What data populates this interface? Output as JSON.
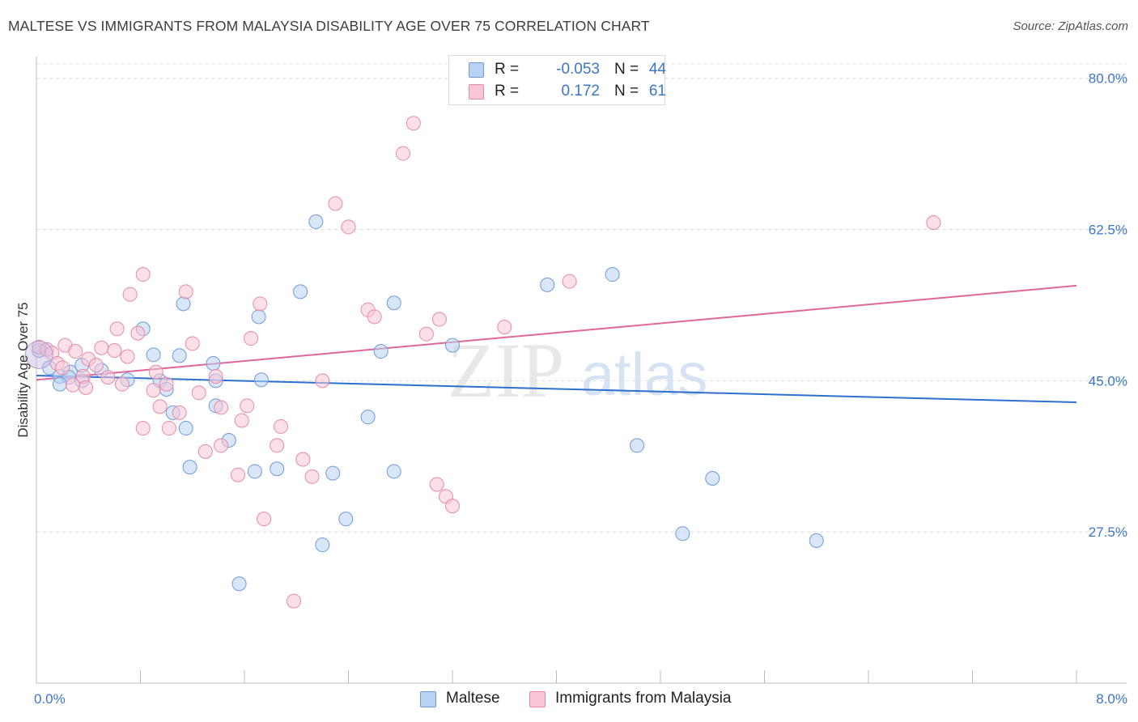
{
  "title": "MALTESE VS IMMIGRANTS FROM MALAYSIA DISABILITY AGE OVER 75 CORRELATION CHART",
  "source": "Source: ZipAtlas.com",
  "watermark": {
    "zip": "ZIP",
    "atlas": "atlas"
  },
  "legend": {
    "rows": [
      {
        "r_label": "R =",
        "r_value": "-0.053",
        "n_label": "N =",
        "n_value": "44",
        "fill": "#b9d1f2",
        "stroke": "#6f9ad8"
      },
      {
        "r_label": "R =",
        "r_value": "0.172",
        "n_label": "N =",
        "n_value": "61",
        "fill": "#f9c6d6",
        "stroke": "#e68aa8"
      }
    ],
    "bottom": [
      {
        "label": "Maltese",
        "fill": "#b9d1f2",
        "stroke": "#6f9ad8"
      },
      {
        "label": "Immigrants from Malaysia",
        "fill": "#f9c6d6",
        "stroke": "#e68aa8"
      }
    ]
  },
  "chart_data": {
    "type": "scatter",
    "title": "MALTESE VS IMMIGRANTS FROM MALAYSIA DISABILITY AGE OVER 75 CORRELATION CHART",
    "xlabel": "",
    "ylabel": "Disability Age Over 75",
    "xlim": [
      0,
      8
    ],
    "ylim": [
      10,
      82.5
    ],
    "x_tick_labels": [
      "0.0%",
      "8.0%"
    ],
    "y_ticks": [
      27.5,
      45.0,
      62.5,
      80.0
    ],
    "y_tick_labels": [
      "27.5%",
      "45.0%",
      "62.5%",
      "80.0%"
    ],
    "grid": "horizontal dashed",
    "legend_position": "top-center",
    "colors": {
      "maltese": "#6f9ad8",
      "maltese_line": "#2f6fd0",
      "malaysia": "#e68aa8",
      "malaysia_line": "#e0679a",
      "axis_text": "#3c76c9"
    },
    "series": [
      {
        "name": "Maltese",
        "color": "#6f9ad8",
        "trend": {
          "x": [
            0,
            8
          ],
          "y": [
            45.6,
            42.5
          ]
        },
        "points": [
          [
            0.02,
            48.5
          ],
          [
            0.1,
            46.5
          ],
          [
            0.18,
            45.5
          ],
          [
            0.26,
            46.0
          ],
          [
            0.35,
            46.8
          ],
          [
            0.5,
            46.2
          ],
          [
            0.25,
            45.4
          ],
          [
            0.35,
            45.0
          ],
          [
            0.18,
            44.6
          ],
          [
            0.7,
            45.1
          ],
          [
            0.82,
            51.0
          ],
          [
            0.9,
            48.0
          ],
          [
            0.95,
            45.0
          ],
          [
            1.0,
            44.0
          ],
          [
            1.05,
            41.3
          ],
          [
            1.1,
            47.9
          ],
          [
            1.13,
            53.9
          ],
          [
            1.15,
            39.5
          ],
          [
            1.18,
            35.0
          ],
          [
            1.38,
            42.1
          ],
          [
            1.38,
            45.0
          ],
          [
            1.36,
            47.0
          ],
          [
            1.48,
            38.1
          ],
          [
            1.56,
            21.5
          ],
          [
            1.68,
            34.5
          ],
          [
            1.71,
            52.4
          ],
          [
            1.73,
            45.1
          ],
          [
            1.85,
            34.8
          ],
          [
            2.03,
            55.3
          ],
          [
            2.15,
            63.4
          ],
          [
            2.2,
            26.0
          ],
          [
            2.28,
            34.3
          ],
          [
            2.38,
            29.0
          ],
          [
            2.55,
            40.8
          ],
          [
            2.65,
            48.4
          ],
          [
            2.75,
            54.0
          ],
          [
            2.75,
            34.5
          ],
          [
            3.2,
            49.1
          ],
          [
            3.93,
            56.1
          ],
          [
            4.43,
            57.3
          ],
          [
            4.62,
            37.5
          ],
          [
            4.97,
            27.3
          ],
          [
            5.2,
            33.7
          ],
          [
            6.0,
            26.5
          ]
        ]
      },
      {
        "name": "Immigrants from Malaysia",
        "color": "#e68aa8",
        "trend": {
          "x": [
            0,
            8
          ],
          "y": [
            45.1,
            56.0
          ]
        },
        "points": [
          [
            0.02,
            48.9
          ],
          [
            0.08,
            48.6
          ],
          [
            0.12,
            48.2
          ],
          [
            0.16,
            47.0
          ],
          [
            0.2,
            46.5
          ],
          [
            0.22,
            49.1
          ],
          [
            0.3,
            48.4
          ],
          [
            0.28,
            44.5
          ],
          [
            0.36,
            45.5
          ],
          [
            0.38,
            44.2
          ],
          [
            0.4,
            47.5
          ],
          [
            0.46,
            46.8
          ],
          [
            0.5,
            48.8
          ],
          [
            0.55,
            45.4
          ],
          [
            0.6,
            48.5
          ],
          [
            0.62,
            51.0
          ],
          [
            0.66,
            44.6
          ],
          [
            0.7,
            47.8
          ],
          [
            0.72,
            55.0
          ],
          [
            0.78,
            50.5
          ],
          [
            0.82,
            39.5
          ],
          [
            0.82,
            57.3
          ],
          [
            0.9,
            43.9
          ],
          [
            0.92,
            46.0
          ],
          [
            0.95,
            42.0
          ],
          [
            1.0,
            44.6
          ],
          [
            1.02,
            39.5
          ],
          [
            1.1,
            41.3
          ],
          [
            1.15,
            55.3
          ],
          [
            1.2,
            49.3
          ],
          [
            1.25,
            43.6
          ],
          [
            1.3,
            36.8
          ],
          [
            1.38,
            45.5
          ],
          [
            1.42,
            41.9
          ],
          [
            1.42,
            37.5
          ],
          [
            1.55,
            34.1
          ],
          [
            1.58,
            40.4
          ],
          [
            1.62,
            42.1
          ],
          [
            1.65,
            49.9
          ],
          [
            1.72,
            53.9
          ],
          [
            1.75,
            29.0
          ],
          [
            1.85,
            37.5
          ],
          [
            1.88,
            39.7
          ],
          [
            1.98,
            19.5
          ],
          [
            2.05,
            35.9
          ],
          [
            2.12,
            33.9
          ],
          [
            2.2,
            45.0
          ],
          [
            2.3,
            65.5
          ],
          [
            2.4,
            62.8
          ],
          [
            2.55,
            53.2
          ],
          [
            2.6,
            52.4
          ],
          [
            2.82,
            71.3
          ],
          [
            2.9,
            74.8
          ],
          [
            3.0,
            50.4
          ],
          [
            3.08,
            33.0
          ],
          [
            3.1,
            52.1
          ],
          [
            3.15,
            31.6
          ],
          [
            3.2,
            30.5
          ],
          [
            3.6,
            51.2
          ],
          [
            4.1,
            56.5
          ],
          [
            6.9,
            63.3
          ]
        ]
      }
    ]
  }
}
